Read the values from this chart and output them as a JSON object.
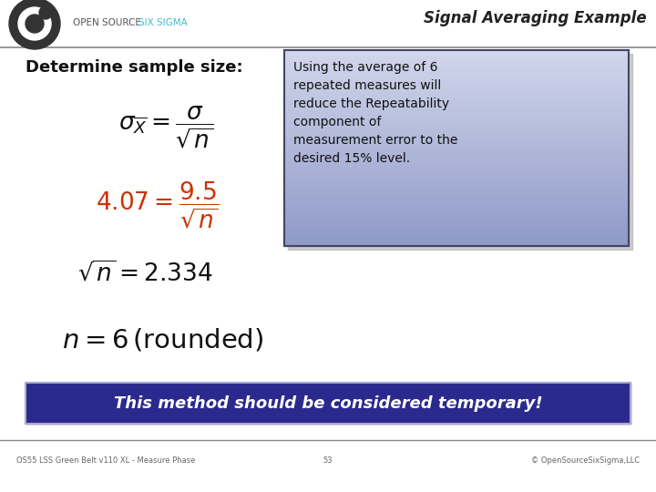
{
  "title": "Signal Averaging Example",
  "header_color": "#44bbcc",
  "bg_color": "#ffffff",
  "section_title": "Determine sample size:",
  "formula1": "$\\sigma_{\\overline{X}} = \\dfrac{\\sigma}{\\sqrt{n}}$",
  "formula2": "$4.07 = \\dfrac{9.5}{\\sqrt{n}}$",
  "formula3": "$\\sqrt{n} = 2.334$",
  "formula4": "$n = 6\\,(\\mathrm{rounded})$",
  "box_text": "Using the average of 6\nrepeated measures will\nreduce the Repeatability\ncomponent of\nmeasurement error to the\ndesired 15% level.",
  "bottom_banner_text": "This method should be considered temporary!",
  "bottom_banner_bg": "#2a2a8e",
  "bottom_banner_text_color": "#ffffff",
  "footer_left": "OS55 LSS Green Belt v110 XL - Measure Phase",
  "footer_center": "53",
  "footer_right": "© OpenSourceSixSigma,LLC",
  "footer_color": "#666666",
  "line_color": "#888888",
  "logo_bg": "#333333",
  "formula2_color": "#cc3300",
  "formula_color": "#111111"
}
